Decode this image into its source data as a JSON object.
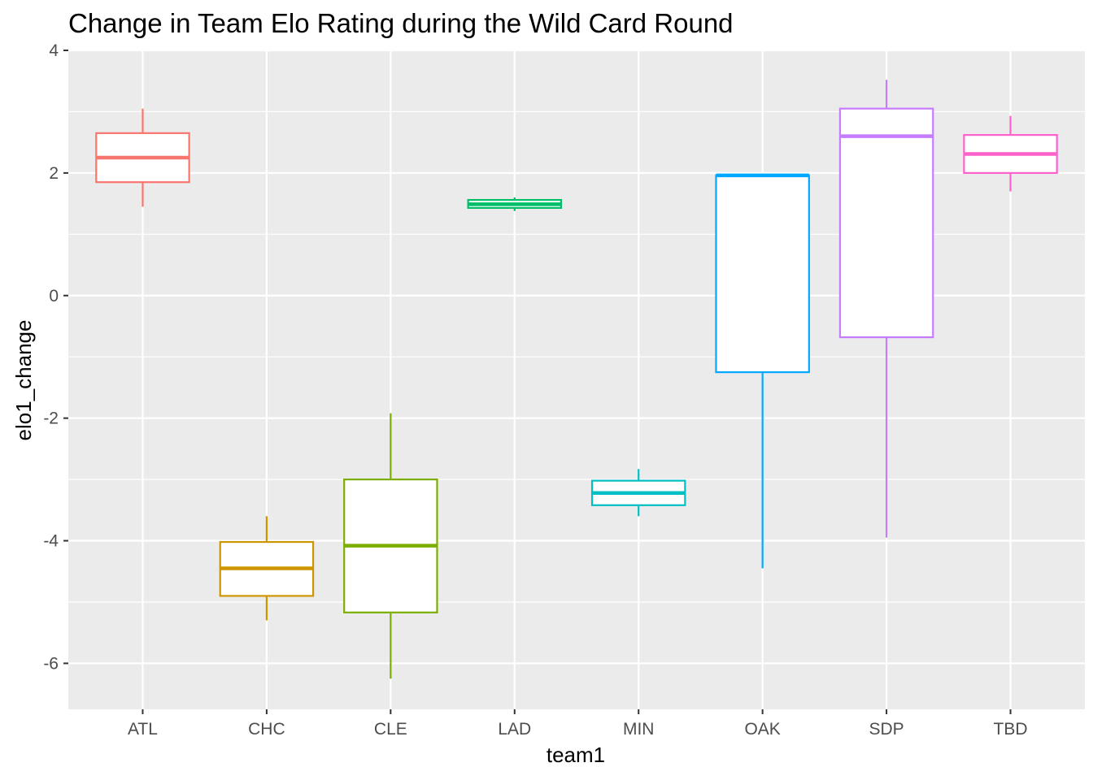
{
  "chart_data": {
    "type": "boxplot",
    "title": "Change in Team Elo Rating during the Wild Card Round",
    "xlabel": "team1",
    "ylabel": "elo1_change",
    "categories": [
      "ATL",
      "CHC",
      "CLE",
      "LAD",
      "MIN",
      "OAK",
      "SDP",
      "TBD"
    ],
    "yticks": [
      4,
      2,
      0,
      -2,
      -4,
      -6
    ],
    "ytick_labels": [
      "4",
      "2",
      "0",
      "-2",
      "-4",
      "-6"
    ],
    "ylim": [
      -6.75,
      4.0
    ],
    "grid": true,
    "legend": "none",
    "panel_background": "#ebebeb",
    "grid_color": "#ffffff",
    "boxes": [
      {
        "category": "ATL",
        "min": 1.45,
        "q1": 1.85,
        "median": 2.25,
        "q3": 2.65,
        "max": 3.05,
        "color": "#F8766D"
      },
      {
        "category": "CHC",
        "min": -5.3,
        "q1": -4.9,
        "median": -4.45,
        "q3": -4.02,
        "max": -3.6,
        "color": "#CD9600"
      },
      {
        "category": "CLE",
        "min": -6.25,
        "q1": -5.17,
        "median": -4.08,
        "q3": -3.0,
        "max": -1.92,
        "color": "#7CAE00"
      },
      {
        "category": "LAD",
        "min": 1.38,
        "q1": 1.43,
        "median": 1.49,
        "q3": 1.56,
        "max": 1.6,
        "color": "#00BE67"
      },
      {
        "category": "MIN",
        "min": -3.6,
        "q1": -3.42,
        "median": -3.22,
        "q3": -3.02,
        "max": -2.83,
        "color": "#00BFC4"
      },
      {
        "category": "OAK",
        "min": -4.45,
        "q1": -1.25,
        "median": 1.96,
        "q3": 1.96,
        "max": 1.98,
        "color": "#00A9FF"
      },
      {
        "category": "SDP",
        "min": -3.95,
        "q1": -0.68,
        "median": 2.6,
        "q3": 3.05,
        "max": 3.52,
        "color": "#C77CFF"
      },
      {
        "category": "TBD",
        "min": 1.7,
        "q1": 2.0,
        "median": 2.31,
        "q3": 2.62,
        "max": 2.93,
        "color": "#FF61CC"
      }
    ]
  }
}
